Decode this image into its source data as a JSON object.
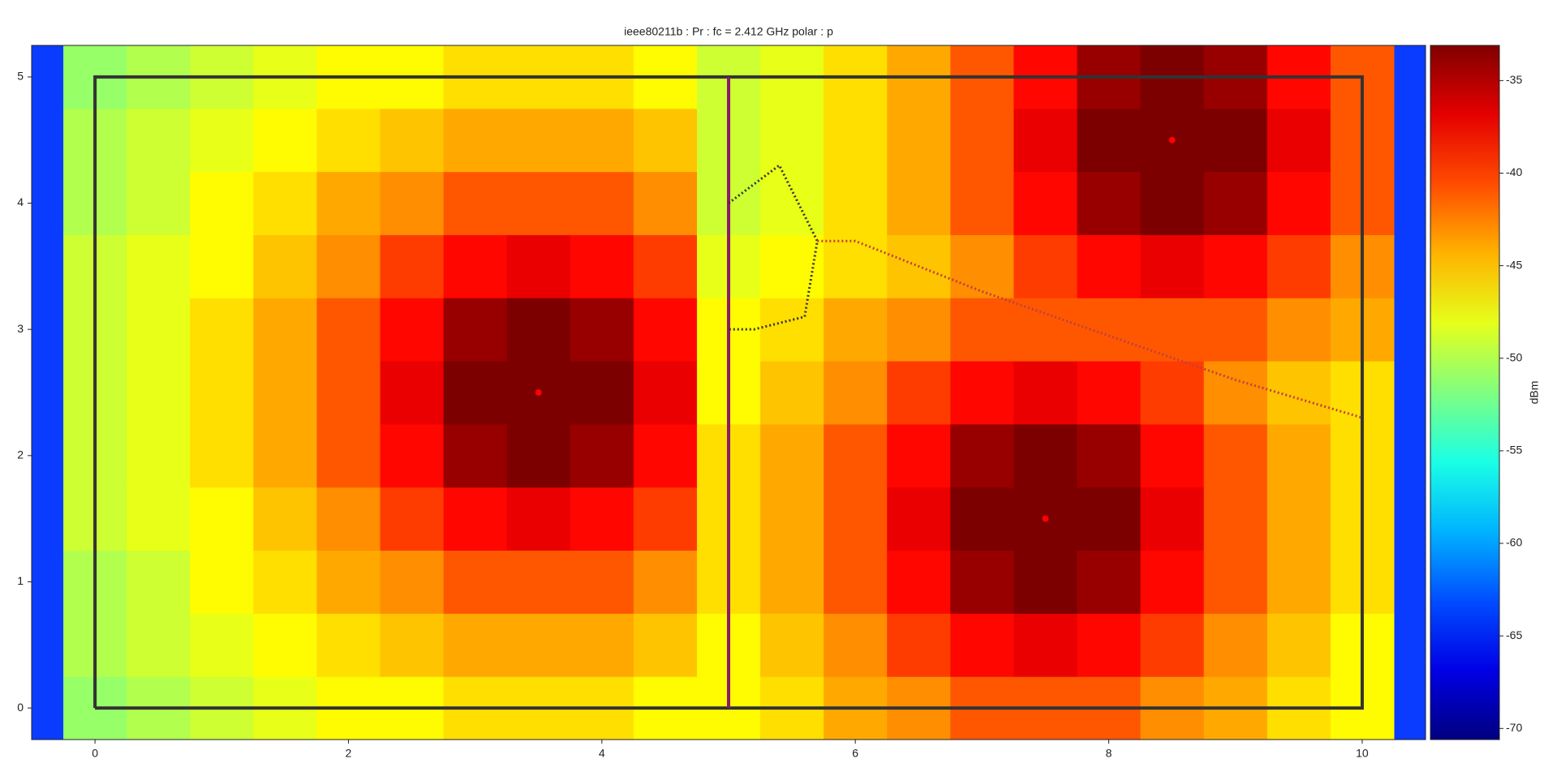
{
  "chart_data": {
    "type": "heatmap",
    "title": "ieee80211b : Pr :  fc = 2.412 GHz polar : p",
    "colorbar_label": "dBm",
    "colormap": "jet",
    "x": [
      0,
      0.5,
      1,
      1.5,
      2,
      2.5,
      3,
      3.5,
      4,
      4.5,
      5,
      5.5,
      6,
      6.5,
      7,
      7.5,
      8,
      8.5,
      9,
      9.5,
      10
    ],
    "y": [
      0,
      0.5,
      1,
      1.5,
      2,
      2.5,
      3,
      3.5,
      4,
      4.5,
      5
    ],
    "z": [
      [
        -51,
        -50,
        -49,
        -48,
        -47,
        -47,
        -46,
        -46,
        -46,
        -47,
        -47,
        -46,
        -44,
        -43,
        -41,
        -41,
        -41,
        -43,
        -44,
        -46,
        -47
      ],
      [
        -50,
        -49,
        -48,
        -47,
        -46,
        -45,
        -44,
        -44,
        -44,
        -45,
        -47,
        -45,
        -43,
        -40,
        -38,
        -37,
        -38,
        -40,
        -43,
        -45,
        -47
      ],
      [
        -50,
        -49,
        -47,
        -46,
        -44,
        -43,
        -41,
        -41,
        -41,
        -43,
        -46,
        -44,
        -41,
        -38,
        -34,
        -33,
        -34,
        -38,
        -41,
        -44,
        -46
      ],
      [
        -49,
        -48,
        -47,
        -45,
        -43,
        -40,
        -38,
        -37,
        -38,
        -40,
        -46,
        -44,
        -41,
        -37,
        -33,
        -33,
        -33,
        -37,
        -41,
        -44,
        -46
      ],
      [
        -49,
        -48,
        -46,
        -44,
        -41,
        -38,
        -34,
        -33,
        -34,
        -38,
        -46,
        -44,
        -41,
        -38,
        -34,
        -33,
        -34,
        -38,
        -41,
        -44,
        -46
      ],
      [
        -49,
        -48,
        -46,
        -44,
        -41,
        -37,
        -33,
        -33,
        -33,
        -37,
        -47,
        -45,
        -43,
        -40,
        -38,
        -37,
        -38,
        -40,
        -43,
        -45,
        -46
      ],
      [
        -49,
        -48,
        -46,
        -44,
        -41,
        -38,
        -34,
        -33,
        -34,
        -38,
        -47,
        -46,
        -44,
        -43,
        -41,
        -41,
        -41,
        -41,
        -41,
        -43,
        -44
      ],
      [
        -49,
        -48,
        -47,
        -45,
        -43,
        -40,
        -38,
        -37,
        -38,
        -40,
        -48,
        -47,
        -46,
        -45,
        -43,
        -40,
        -38,
        -37,
        -38,
        -40,
        -43
      ],
      [
        -50,
        -49,
        -47,
        -46,
        -44,
        -43,
        -41,
        -41,
        -41,
        -43,
        -49,
        -48,
        -46,
        -44,
        -41,
        -38,
        -34,
        -33,
        -34,
        -38,
        -41
      ],
      [
        -50,
        -49,
        -48,
        -47,
        -46,
        -45,
        -44,
        -44,
        -44,
        -45,
        -49,
        -48,
        -46,
        -44,
        -41,
        -37,
        -33,
        -33,
        -33,
        -37,
        -41
      ],
      [
        -51,
        -50,
        -49,
        -48,
        -47,
        -47,
        -46,
        -46,
        -46,
        -47,
        -49,
        -48,
        -46,
        -44,
        -41,
        -38,
        -34,
        -33,
        -34,
        -38,
        -41
      ]
    ],
    "clim": [
      -70.6,
      -33.1
    ],
    "cticks": [
      -35,
      -40,
      -45,
      -50,
      -55,
      -60,
      -65,
      -70
    ],
    "xlim": [
      -0.5,
      10.5
    ],
    "ylim": [
      -0.25,
      5.25
    ],
    "xticks": [
      0,
      2,
      4,
      6,
      8,
      10
    ],
    "yticks": [
      0,
      1,
      2,
      3,
      4,
      5
    ],
    "points": {
      "x": [
        3.5,
        8.5,
        7.5
      ],
      "y": [
        2.5,
        4.5,
        1.5
      ],
      "color": "#ff0000"
    },
    "walls": [
      {
        "x": [
          0,
          10,
          10,
          0,
          0
        ],
        "y": [
          0,
          0,
          5,
          5,
          0
        ],
        "color": "#333333",
        "style": "solid"
      },
      {
        "x": [
          5,
          5
        ],
        "y": [
          0,
          5
        ],
        "color": "#8b1a6b",
        "style": "solid"
      },
      {
        "x": [
          5,
          5.4,
          5.7,
          5.6,
          5.2,
          5
        ],
        "y": [
          4,
          4.3,
          3.7,
          3.1,
          3,
          3
        ],
        "color": "#333333",
        "style": "dotted"
      },
      {
        "x": [
          5.7,
          6,
          7,
          8,
          9,
          10
        ],
        "y": [
          3.7,
          3.7,
          3.3,
          2.95,
          2.6,
          2.3
        ],
        "color": "#c04040",
        "style": "dotted"
      }
    ]
  }
}
